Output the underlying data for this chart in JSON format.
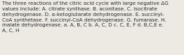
{
  "text": "The three reactions of the citric acid cycle with large negative ΔG\nvalues include: A. citrate synthase. B. aconitase. C. isocitrate\ndehydrogenase. D. α-ketoglutarate dehydrogenase. E. succinyl-\nCoA synthetase. F. succinyl-CoA dehydrogenase. G. fumarase. H.\nmalate dehydrogenase. a. A, B, C b. A, C, D c. C, E, F d. B,C,E e.\nA, C, H",
  "font_size": 5.2,
  "text_color": "#2a2a2a",
  "background_color": "#edeae4"
}
